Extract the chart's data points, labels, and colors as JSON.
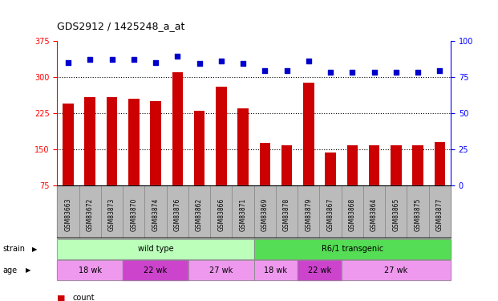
{
  "title": "GDS2912 / 1425248_a_at",
  "samples": [
    "GSM83663",
    "GSM83672",
    "GSM83873",
    "GSM83870",
    "GSM83874",
    "GSM83876",
    "GSM83862",
    "GSM83866",
    "GSM83871",
    "GSM83869",
    "GSM83878",
    "GSM83879",
    "GSM83867",
    "GSM83868",
    "GSM83864",
    "GSM83865",
    "GSM83875",
    "GSM83877"
  ],
  "counts": [
    245,
    258,
    257,
    255,
    250,
    310,
    230,
    280,
    235,
    162,
    157,
    288,
    143,
    158,
    157,
    157,
    157,
    165
  ],
  "percentiles": [
    85,
    87,
    87,
    87,
    85,
    89,
    84,
    86,
    84,
    79,
    79,
    86,
    78,
    78,
    78,
    78,
    78,
    79
  ],
  "ymin": 75,
  "ymax": 375,
  "yright_min": 0,
  "yright_max": 100,
  "yticks_left": [
    75,
    150,
    225,
    300,
    375
  ],
  "yticks_right": [
    0,
    25,
    50,
    75,
    100
  ],
  "bar_color": "#cc0000",
  "dot_color": "#0000cc",
  "strain_groups": [
    {
      "label": "wild type",
      "start": 0,
      "end": 9,
      "color": "#bbffbb"
    },
    {
      "label": "R6/1 transgenic",
      "start": 9,
      "end": 18,
      "color": "#55dd55"
    }
  ],
  "age_groups": [
    {
      "label": "18 wk",
      "start": 0,
      "end": 3,
      "color": "#ee99ee"
    },
    {
      "label": "22 wk",
      "start": 3,
      "end": 6,
      "color": "#cc44cc"
    },
    {
      "label": "27 wk",
      "start": 6,
      "end": 9,
      "color": "#ee99ee"
    },
    {
      "label": "18 wk",
      "start": 9,
      "end": 11,
      "color": "#ee99ee"
    },
    {
      "label": "22 wk",
      "start": 11,
      "end": 13,
      "color": "#cc44cc"
    },
    {
      "label": "27 wk",
      "start": 13,
      "end": 18,
      "color": "#ee99ee"
    }
  ],
  "tick_bg_color": "#bbbbbb",
  "grid_color": "black",
  "grid_linestyle": ":",
  "grid_linewidth": 0.8,
  "bar_width": 0.5,
  "dot_size": 18,
  "left_spine_color": "red",
  "right_spine_color": "blue",
  "left_tick_color": "red",
  "right_tick_color": "blue",
  "legend_count_color": "#cc0000",
  "legend_dot_color": "#0000cc"
}
